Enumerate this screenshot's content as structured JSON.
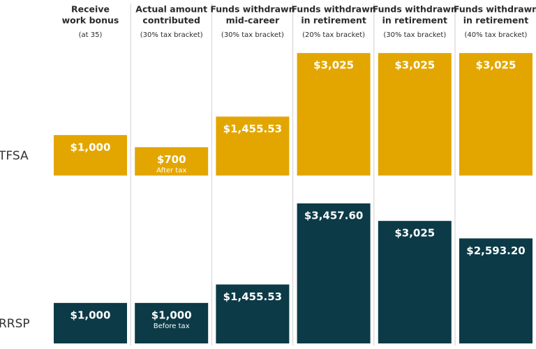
{
  "chart_data": {
    "type": "paired-bar",
    "categories": [
      [
        "Receive",
        "work bonus"
      ],
      [
        "Actual amount",
        "contributed"
      ],
      [
        "Funds withdrawn",
        "mid-career"
      ],
      [
        "Funds withdrawn",
        "in retirement"
      ],
      [
        "Funds withdrawn",
        "in retirement"
      ],
      [
        "Funds withdrawn",
        "in retirement"
      ]
    ],
    "category_notes": [
      "(at 35)",
      "(30% tax bracket)",
      "(30% tax bracket)",
      "(20% tax bracket)",
      "(30% tax bracket)",
      "(40% tax bracket)"
    ],
    "series": [
      {
        "name": "TFSA",
        "color": "#e3a600",
        "values": [
          1000,
          700,
          1455.53,
          3025,
          3025,
          3025
        ],
        "value_labels": [
          "$1,000",
          "$700",
          "$1,455.53",
          "$3,025",
          "$3,025",
          "$3,025"
        ],
        "sublabels": [
          null,
          "After tax",
          null,
          null,
          null,
          null
        ]
      },
      {
        "name": "RRSP",
        "color": "#0c3a47",
        "values": [
          1000,
          1000,
          1455.53,
          3457.6,
          3025,
          2593.2
        ],
        "value_labels": [
          "$1,000",
          "$1,000",
          "$1,455.53",
          "$3,457.60",
          "$3,025",
          "$2,593.20"
        ],
        "sublabels": [
          null,
          "Before tax",
          null,
          null,
          null,
          null
        ]
      }
    ]
  }
}
